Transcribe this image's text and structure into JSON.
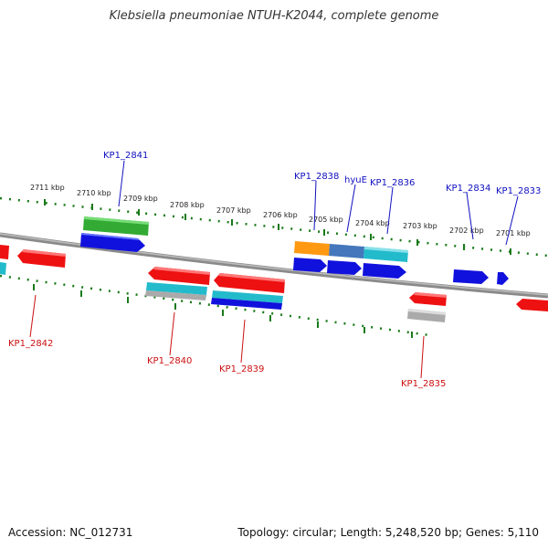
{
  "title": "Klebsiella pneumoniae NTUH-K2044, complete genome",
  "footer": {
    "accession": "Accession: NC_012731",
    "topology": "Topology: circular; Length: 5,248,520 bp; Genes: 5,110"
  },
  "ruler_labels": [
    "2711 kbp",
    "2710 kbp",
    "2709 kbp",
    "2708 kbp",
    "2707 kbp",
    "2706 kbp",
    "2705 kbp",
    "2704 kbp",
    "2703 kbp",
    "2702 kbp",
    "2701 kbp"
  ],
  "top_gene_labels": [
    "KP1_2841",
    "KP1_2838",
    "hyuE",
    "KP1_2836",
    "KP1_2834",
    "KP1_2833"
  ],
  "bottom_gene_labels": [
    "KP1_2842",
    "KP1_2840",
    "KP1_2839",
    "KP1_2835"
  ],
  "colors": {
    "backbone": "#808080",
    "ruler": "#1a7a1a",
    "top_label": "#1010c0",
    "bottom_label": "#cc1010",
    "gene_red": "#ee1111",
    "gene_blue": "#1111dd",
    "gene_cyan": "#22bbcc",
    "gene_green": "#33aa33",
    "gene_orange": "#ff9911",
    "gene_steel": "#4477bb",
    "gene_gray": "#aaaaaa"
  }
}
